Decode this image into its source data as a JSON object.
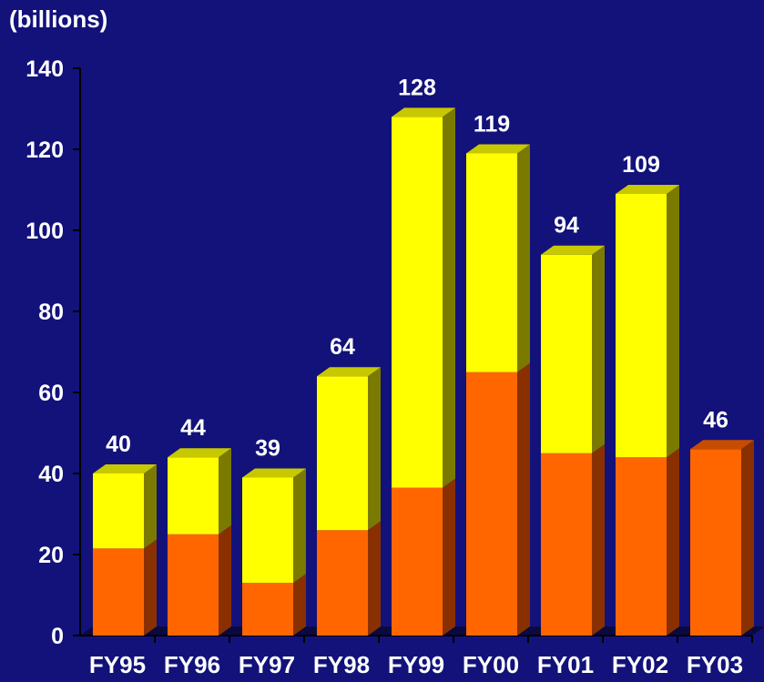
{
  "chart_data": {
    "type": "bar",
    "stacked": true,
    "three_d": true,
    "unit_label": "(billions)",
    "categories": [
      "FY95",
      "FY96",
      "FY97",
      "FY98",
      "FY99",
      "FY00",
      "FY01",
      "FY02",
      "FY03"
    ],
    "series": [
      {
        "values": [
          21.5,
          25,
          13,
          26,
          36.5,
          65,
          45,
          44,
          46
        ]
      },
      {
        "values": [
          18.5,
          19,
          26,
          38,
          91.5,
          54,
          49,
          65,
          0
        ]
      }
    ],
    "totals": [
      40,
      44,
      39,
      64,
      128,
      119,
      94,
      109,
      46
    ],
    "yticks": [
      0,
      20,
      40,
      60,
      80,
      100,
      120,
      140
    ],
    "ylim": [
      0,
      140
    ],
    "grid": false,
    "colors": {
      "background": "#12127a",
      "series_front": [
        "#ff6600",
        "#ffff00"
      ],
      "series_side": [
        "#8a3000",
        "#7a7a00"
      ],
      "series_top": [
        "#c84c00",
        "#c8c800"
      ],
      "axis": "#000000",
      "text": "#ffffff"
    }
  }
}
